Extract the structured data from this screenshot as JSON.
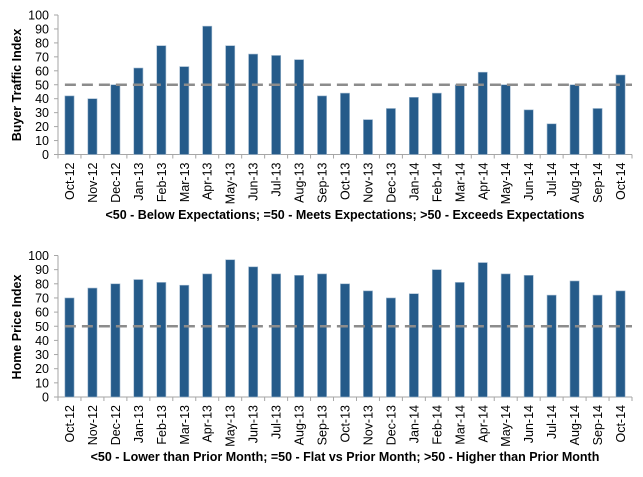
{
  "colors": {
    "bar": "#255B8A",
    "bar_edge": "#9FB8CF",
    "reference_line": "#8C8C8C",
    "axis": "#A6A6A6"
  },
  "chart_data": [
    {
      "type": "bar",
      "title": "",
      "xlabel": "<50 - Below Expectations; =50 - Meets Expectations; >50 - Exceeds Expectations",
      "ylabel": "Buyer Traffic Index",
      "ylim": [
        0,
        100
      ],
      "yticks": [
        0,
        10,
        20,
        30,
        40,
        50,
        60,
        70,
        80,
        90,
        100
      ],
      "grid": false,
      "reference_line": {
        "value": 50,
        "style": "dashed"
      },
      "categories": [
        "Oct-12",
        "Nov-12",
        "Dec-12",
        "Jan-13",
        "Feb-13",
        "Mar-13",
        "Apr-13",
        "May-13",
        "Jun-13",
        "Jul-13",
        "Aug-13",
        "Sep-13",
        "Oct-13",
        "Nov-13",
        "Dec-13",
        "Jan-14",
        "Feb-14",
        "Mar-14",
        "Apr-14",
        "May-14",
        "Jun-14",
        "Jul-14",
        "Aug-14",
        "Sep-14",
        "Oct-14"
      ],
      "values": [
        42,
        40,
        50,
        62,
        78,
        63,
        92,
        78,
        72,
        71,
        68,
        42,
        44,
        25,
        33,
        41,
        44,
        50,
        59,
        50,
        32,
        22,
        50,
        33,
        57
      ]
    },
    {
      "type": "bar",
      "title": "",
      "xlabel": "<50 - Lower than Prior Month; =50 - Flat vs Prior Month; >50 - Higher than Prior Month",
      "ylabel": "Home Price Index",
      "ylim": [
        0,
        100
      ],
      "yticks": [
        0,
        10,
        20,
        30,
        40,
        50,
        60,
        70,
        80,
        90,
        100
      ],
      "grid": false,
      "reference_line": {
        "value": 50,
        "style": "dashed"
      },
      "categories": [
        "Oct-12",
        "Nov-12",
        "Dec-12",
        "Jan-13",
        "Feb-13",
        "Mar-13",
        "Apr-13",
        "May-13",
        "Jun-13",
        "Jul-13",
        "Aug-13",
        "Sep-13",
        "Oct-13",
        "Nov-13",
        "Dec-13",
        "Jan-14",
        "Feb-14",
        "Mar-14",
        "Apr-14",
        "May-14",
        "Jun-14",
        "Jul-14",
        "Aug-14",
        "Sep-14",
        "Oct-14"
      ],
      "values": [
        70,
        77,
        80,
        83,
        81,
        79,
        87,
        97,
        92,
        87,
        86,
        87,
        80,
        75,
        70,
        73,
        90,
        81,
        95,
        87,
        86,
        72,
        82,
        72,
        75
      ]
    }
  ]
}
